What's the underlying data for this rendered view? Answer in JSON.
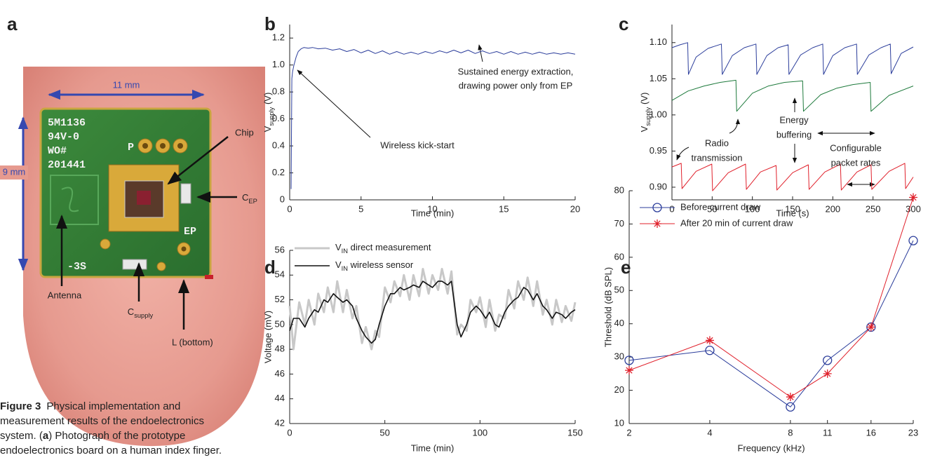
{
  "panel_a": {
    "letter": "a",
    "dimensions": [
      "11 mm",
      "9 mm"
    ],
    "labels": {
      "chip": "Chip",
      "cep": [
        "C",
        "EP"
      ],
      "antenna": "Antenna",
      "csupply": [
        "C",
        "supply"
      ],
      "l": "L (bottom)"
    },
    "silkscreen": [
      "5M1136",
      "94V-0",
      "WO#",
      "201441",
      "P",
      "EP",
      "-3S"
    ]
  },
  "caption": {
    "label": "Figure 3",
    "text": [
      "Physical implementation and",
      "measurement results of the endoelectronics",
      "system. (",
      "a",
      ") Photograph of the prototype",
      "endoelectronics board on a human index finger."
    ]
  },
  "chart_data": [
    {
      "type": "line",
      "panel": "b",
      "xlabel": "Time (min)",
      "ylabel": [
        "V",
        "supply",
        " (V)"
      ],
      "xlim": [
        0,
        20
      ],
      "xticks": [
        0,
        5,
        10,
        15,
        20
      ],
      "ylim": [
        0,
        1.3
      ],
      "yticks": [
        0,
        0.2,
        0.4,
        0.6,
        0.8,
        {
          "value": 1,
          "label": "1.0"
        },
        1.2
      ],
      "series": [
        {
          "color": "#2b3d9b",
          "x": [
            0.1,
            0.15,
            0.2,
            0.3,
            0.45,
            0.6,
            0.8,
            1,
            1.3,
            1.6,
            2,
            2.5,
            3,
            3.5,
            4,
            4.5,
            5,
            5.5,
            6,
            6.5,
            7,
            7.5,
            8,
            8.5,
            9,
            9.5,
            10,
            10.5,
            11,
            11.5,
            12,
            12.5,
            13,
            13.5,
            14,
            14.5,
            15,
            15.5,
            16,
            16.5,
            17,
            17.5,
            18,
            18.5,
            19,
            19.5,
            20
          ],
          "values": [
            0.08,
            0.9,
            0.95,
            1.0,
            1.06,
            1.1,
            1.12,
            1.13,
            1.125,
            1.13,
            1.12,
            1.125,
            1.11,
            1.12,
            1.1,
            1.115,
            1.09,
            1.11,
            1.085,
            1.105,
            1.08,
            1.1,
            1.08,
            1.095,
            1.08,
            1.1,
            1.085,
            1.105,
            1.09,
            1.11,
            1.09,
            1.11,
            1.085,
            1.105,
            1.085,
            1.1,
            1.08,
            1.1,
            1.08,
            1.095,
            1.08,
            1.095,
            1.08,
            1.09,
            1.08,
            1.09,
            1.08
          ]
        }
      ],
      "annotations": [
        "Wireless kick-start",
        [
          "Sustained energy extraction,",
          "drawing power only from EP"
        ]
      ]
    },
    {
      "type": "line",
      "panel": "c",
      "xlabel": "Time (s)",
      "ylabel": [
        "V",
        "supply",
        " (V)"
      ],
      "xlim": [
        0,
        300
      ],
      "xticks": [
        0,
        50,
        100,
        150,
        200,
        250,
        300
      ],
      "ylim": [
        0.8825,
        1.125
      ],
      "yticks": [
        {
          "value": 0.9,
          "label": "0.90"
        },
        {
          "value": 0.95,
          "label": "0.95"
        },
        {
          "value": 1,
          "label": "1.00"
        },
        {
          "value": 1.05,
          "label": "1.05"
        },
        {
          "value": 1.1,
          "label": "1.10"
        }
      ],
      "series": [
        {
          "color": "#2b3d9b",
          "x": [
            0,
            10,
            19.5,
            20.5,
            30,
            45,
            61.5,
            62.5,
            75,
            90,
            104.5,
            105.5,
            118,
            132,
            144.5,
            145.5,
            160,
            175,
            187.5,
            188.5,
            200,
            215,
            229.5,
            230.5,
            245,
            260,
            271.5,
            272.5,
            285,
            300
          ],
          "values": [
            1.093,
            1.097,
            1.1,
            1.056,
            1.08,
            1.092,
            1.098,
            1.056,
            1.082,
            1.093,
            1.098,
            1.056,
            1.082,
            1.093,
            1.097,
            1.056,
            1.083,
            1.093,
            1.098,
            1.056,
            1.082,
            1.093,
            1.098,
            1.056,
            1.083,
            1.093,
            1.098,
            1.057,
            1.085,
            1.094
          ]
        },
        {
          "color": "#1e7a3c",
          "x": [
            0,
            20,
            40,
            60,
            79.5,
            80.5,
            100,
            120,
            140,
            162.5,
            163.5,
            185,
            205,
            225,
            246.5,
            247.5,
            270,
            300
          ],
          "values": [
            1.02,
            1.033,
            1.04,
            1.045,
            1.048,
            1.005,
            1.03,
            1.04,
            1.045,
            1.047,
            1.005,
            1.028,
            1.037,
            1.042,
            1.045,
            1.005,
            1.027,
            1.04
          ]
        },
        {
          "color": "#e0202b",
          "x": [
            0,
            11.5,
            12.5,
            30,
            49.5,
            50.5,
            70,
            91.5,
            92.5,
            110,
            129.5,
            130.5,
            150,
            169.5,
            170.5,
            190,
            209.5,
            210.5,
            230,
            247.5,
            248.5,
            270,
            289.5,
            290.5,
            300
          ],
          "values": [
            0.928,
            0.933,
            0.898,
            0.922,
            0.932,
            0.895,
            0.92,
            0.932,
            0.897,
            0.921,
            0.93,
            0.896,
            0.92,
            0.931,
            0.897,
            0.921,
            0.932,
            0.896,
            0.921,
            0.931,
            0.897,
            0.922,
            0.933,
            0.898,
            0.914
          ]
        }
      ],
      "annotations": [
        [
          "Radio",
          "transmission"
        ],
        [
          "Energy",
          "buffering"
        ],
        [
          "Configurable",
          "packet rates"
        ]
      ]
    },
    {
      "type": "line",
      "panel": "d",
      "xlabel": "Time (min)",
      "ylabel": "Voltage (mV)",
      "xlim": [
        0,
        150
      ],
      "xticks": [
        0,
        50,
        100,
        150
      ],
      "ylim": [
        42,
        56
      ],
      "yticks": [
        42,
        44,
        46,
        48,
        50,
        52,
        54,
        56
      ],
      "legend": "upper left",
      "x": [
        0,
        2,
        5,
        8,
        10,
        13,
        15,
        18,
        20,
        23,
        25,
        28,
        30,
        33,
        35,
        38,
        40,
        43,
        45,
        47,
        50,
        53,
        55,
        58,
        60,
        63,
        65,
        68,
        70,
        73,
        75,
        78,
        80,
        83,
        85,
        88,
        90,
        93,
        95,
        98,
        100,
        103,
        105,
        108,
        110,
        113,
        115,
        118,
        120,
        123,
        125,
        128,
        130,
        133,
        135,
        138,
        140,
        143,
        145,
        148,
        150
      ],
      "series": [
        {
          "name": [
            "V",
            "IN",
            " direct measurement"
          ],
          "color": "#c8c8c8",
          "width": 3,
          "values": [
            51.5,
            48,
            51.8,
            50,
            52,
            50,
            52.5,
            51,
            53,
            51,
            53.5,
            51,
            52.8,
            50.5,
            51.5,
            48.5,
            49.8,
            48,
            49.5,
            49,
            53,
            51.8,
            53.5,
            52.3,
            54,
            52,
            54,
            52.3,
            54.5,
            52.5,
            54,
            52.8,
            54.5,
            52.5,
            54.3,
            49.2,
            50,
            49.5,
            52,
            51,
            52.2,
            49.8,
            52,
            49.5,
            50.8,
            50.5,
            52.8,
            51.3,
            53.5,
            52,
            53.8,
            51.5,
            53.5,
            50.8,
            52,
            50,
            52,
            50.2,
            51.5,
            50.3,
            51.8
          ]
        },
        {
          "name": [
            "V",
            "IN",
            " wireless sensor"
          ],
          "color": "#111111",
          "width": 1.6,
          "values": [
            49.5,
            50.5,
            50.5,
            49.8,
            50.5,
            51.2,
            51,
            52,
            51.8,
            52.5,
            52.2,
            51.8,
            52,
            51.5,
            50.5,
            49.5,
            49,
            48.5,
            48.8,
            50,
            51.5,
            52.5,
            52.5,
            53,
            52.8,
            53,
            53.2,
            53,
            53.5,
            53.2,
            53,
            53.5,
            53.5,
            53.2,
            53.5,
            50,
            49,
            50,
            51,
            51.5,
            51.2,
            50.5,
            51,
            50,
            49.8,
            51,
            51.5,
            52,
            52.2,
            53,
            52.8,
            52,
            52.5,
            51.5,
            51.2,
            50.5,
            51,
            50.8,
            50.5,
            51,
            51.2
          ]
        }
      ]
    },
    {
      "type": "line",
      "panel": "e",
      "xlabel": "Frequency (kHz)",
      "ylabel": "Threshold (dB SPL)",
      "xscale": "log",
      "xlim": [
        2,
        23
      ],
      "xticks": [
        2,
        4,
        8,
        11,
        16,
        23
      ],
      "ylim": [
        10,
        80
      ],
      "yticks": [
        10,
        20,
        30,
        40,
        50,
        60,
        70,
        80
      ],
      "legend": "upper left",
      "x": [
        2,
        4,
        8,
        11,
        16,
        23
      ],
      "series": [
        {
          "name": "Before current draw",
          "color": "#2b3d9b",
          "marker": "o",
          "values": [
            29,
            32,
            15,
            29,
            39,
            65
          ]
        },
        {
          "name": "After 20 min of current draw",
          "color": "#e0202b",
          "marker": "*",
          "values": [
            26,
            35,
            18,
            25,
            39,
            78
          ]
        }
      ]
    }
  ]
}
